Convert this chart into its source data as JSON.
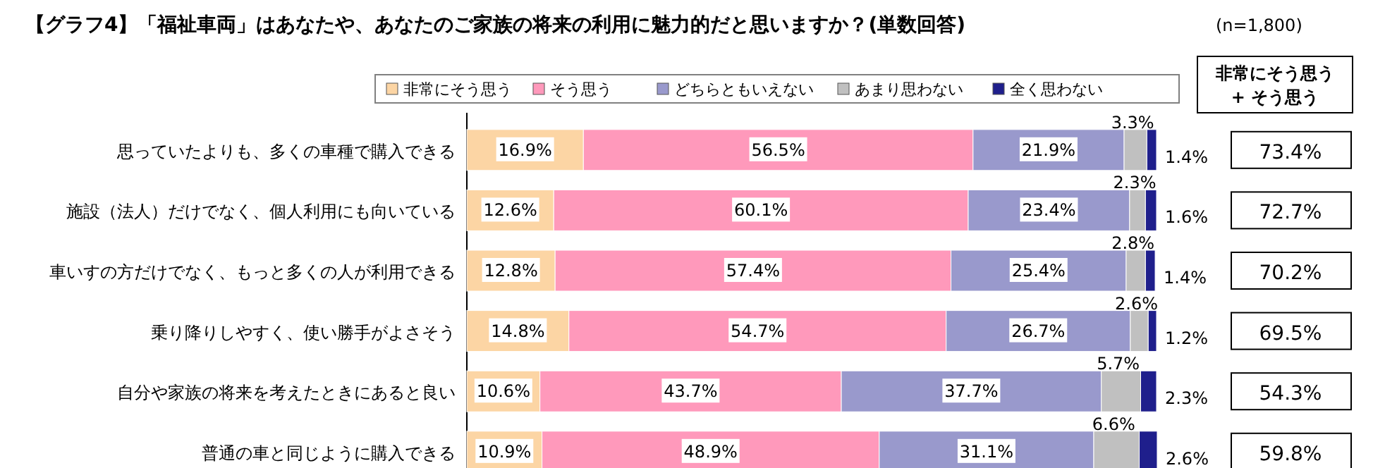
{
  "chart_data": [
    {
      "type": "bar",
      "orientation": "horizontal",
      "stacked": true,
      "title": "【グラフ4】「福祉車両」はあなたや、あなたのご家族の将来の利用に魅力的だと思いますか？(単数回答)",
      "legend": "top",
      "xlim": [
        0,
        100
      ],
      "categories": [
        "思っていたよりも、多くの車種で購入できる",
        "施設（法人）だけでなく、個人利用にも向いている",
        "車いすの方だけでなく、もっと多くの人が利用できる",
        "乗り降りしやすく、使い勝手がよさそう",
        "自分や家族の将来を考えたときにあると良い",
        "普通の車と同じように購入できる"
      ],
      "series": [
        {
          "name": "非常にそう思う",
          "color": "#fcd5a4",
          "values": [
            16.9,
            12.6,
            12.8,
            14.8,
            10.6,
            10.9
          ],
          "value_labels": [
            "16.9%",
            "12.6%",
            "12.8%",
            "14.8%",
            "10.6%",
            "10.9%"
          ]
        },
        {
          "name": "そう思う",
          "color": "#ff99bb",
          "values": [
            56.5,
            60.1,
            57.4,
            54.7,
            43.7,
            48.9
          ],
          "value_labels": [
            "56.5%",
            "60.1%",
            "57.4%",
            "54.7%",
            "43.7%",
            "48.9%"
          ]
        },
        {
          "name": "どちらともいえない",
          "color": "#9999cc",
          "values": [
            21.9,
            23.4,
            25.4,
            26.7,
            37.7,
            31.1
          ],
          "value_labels": [
            "21.9%",
            "23.4%",
            "25.4%",
            "26.7%",
            "37.7%",
            "31.1%"
          ]
        },
        {
          "name": "あまり思わない",
          "color": "#c0c0c0",
          "values": [
            3.3,
            2.3,
            2.8,
            2.6,
            5.7,
            6.6
          ],
          "value_labels": [
            "3.3%",
            "2.3%",
            "2.8%",
            "2.6%",
            "5.7%",
            "6.6%"
          ]
        },
        {
          "name": "全く思わない",
          "color": "#1f1f8c",
          "values": [
            1.4,
            1.6,
            1.4,
            1.2,
            2.3,
            2.6
          ],
          "value_labels": [
            "1.4%",
            "1.6%",
            "1.4%",
            "1.2%",
            "2.3%",
            "2.6%"
          ]
        }
      ]
    },
    {
      "type": "other",
      "subtitle": "(n=1,800)",
      "title": "非常にそう思う\n+ そう思う",
      "annotations": [
        "73.4%",
        "72.7%",
        "70.2%",
        "69.5%",
        "54.3%",
        "59.8%"
      ]
    }
  ]
}
